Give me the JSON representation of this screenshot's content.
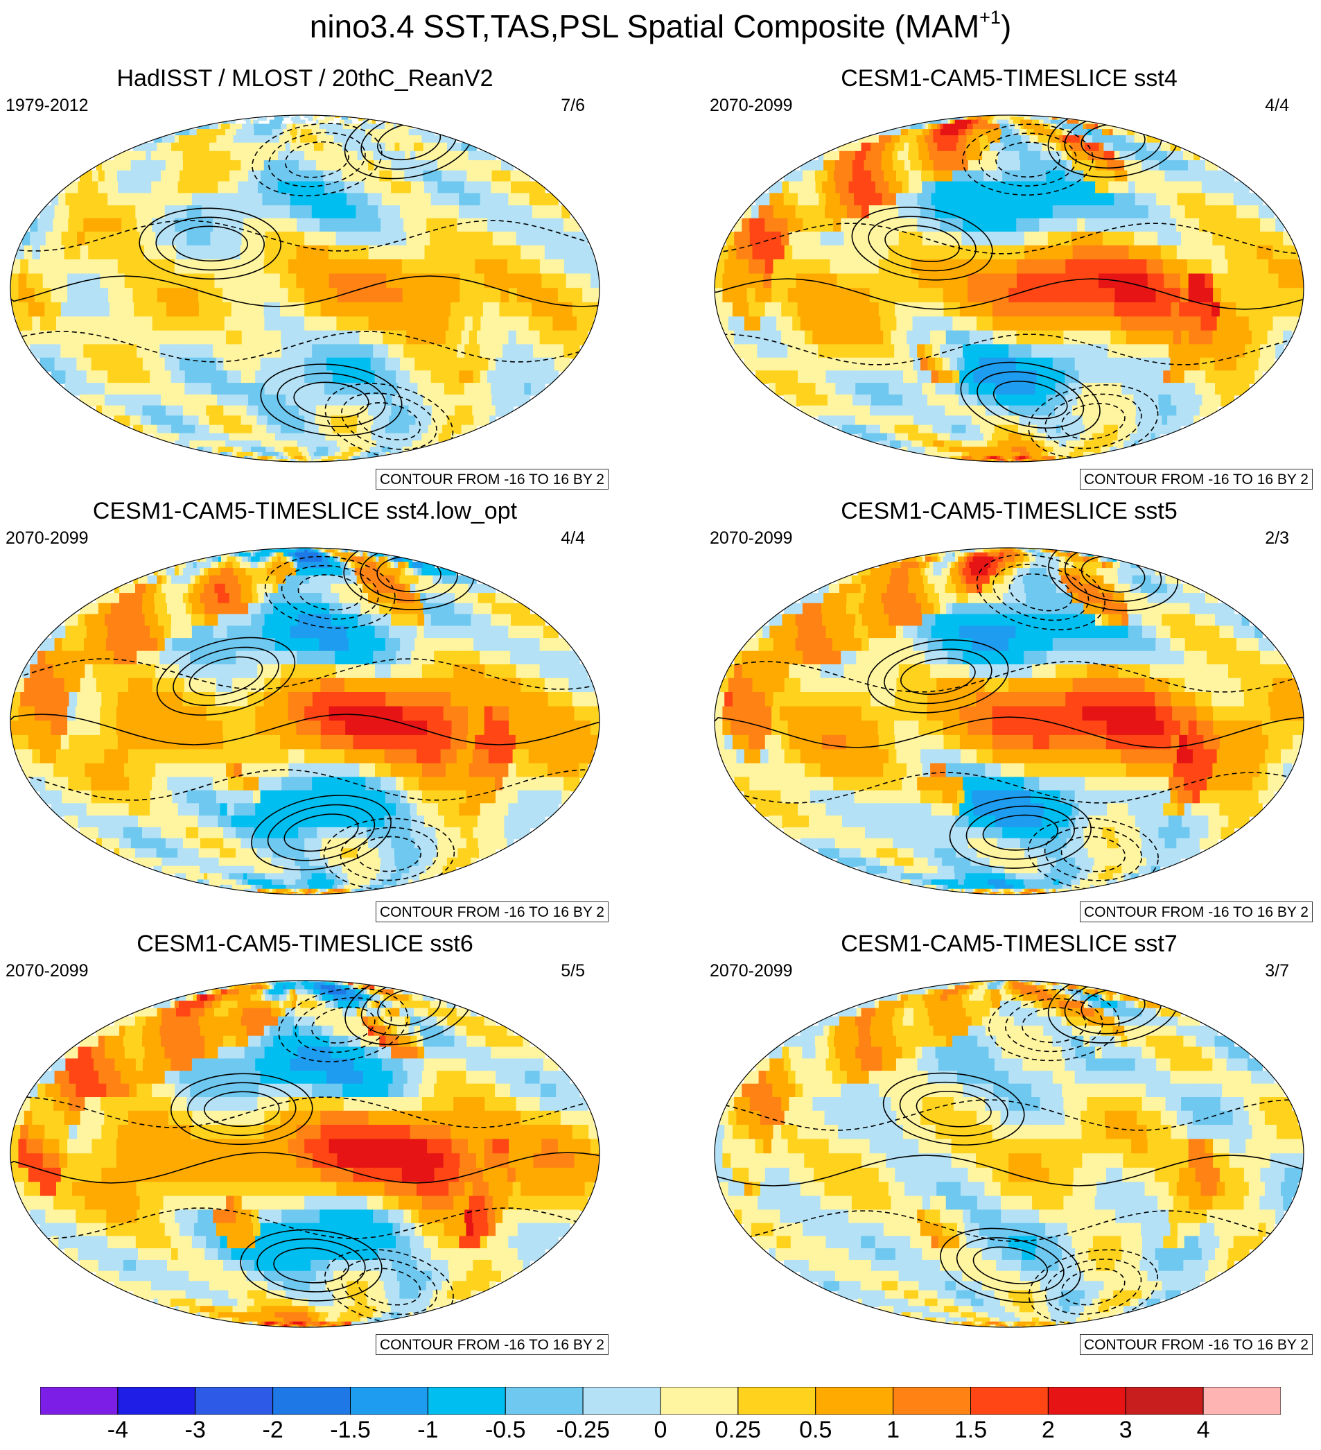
{
  "title": {
    "main": "nino3.4 SST,TAS,PSL Spatial Composite (MAM",
    "superscript": "+1",
    "suffix": ")"
  },
  "chart_data": [
    {
      "type": "heatmap",
      "title": "HadISST / MLOST / 20thC_ReanV2",
      "period": "1979-2012",
      "count": "7/6",
      "contour_note": "CONTOUR FROM -16 TO 16 BY 2",
      "pattern": {
        "enso": 0.55,
        "nh_polar": -0.4,
        "sh_polar": 0.0,
        "land": 0.25,
        "missing_polar": true,
        "flavor": 1
      }
    },
    {
      "type": "heatmap",
      "title": "CESM1-CAM5-TIMESLICE sst4",
      "period": "2070-2099",
      "count": "4/4",
      "contour_note": "CONTOUR FROM -16 TO 16 BY 2",
      "pattern": {
        "enso": 1.2,
        "nh_polar": 0.9,
        "sh_polar": 1.0,
        "land": 1.1,
        "missing_polar": false,
        "flavor": 2
      }
    },
    {
      "type": "heatmap",
      "title": "CESM1-CAM5-TIMESLICE sst4.low_opt",
      "period": "2070-2099",
      "count": "4/4",
      "contour_note": "CONTOUR FROM -16 TO 16 BY 2",
      "pattern": {
        "enso": 1.2,
        "nh_polar": -1.8,
        "sh_polar": -0.6,
        "land": 1.0,
        "missing_polar": false,
        "flavor": 3
      }
    },
    {
      "type": "heatmap",
      "title": "CESM1-CAM5-TIMESLICE sst5",
      "period": "2070-2099",
      "count": "2/3",
      "contour_note": "CONTOUR FROM -16 TO 16 BY 2",
      "pattern": {
        "enso": 1.3,
        "nh_polar": 1.2,
        "sh_polar": -1.0,
        "land": 1.0,
        "missing_polar": false,
        "flavor": 4
      }
    },
    {
      "type": "heatmap",
      "title": "CESM1-CAM5-TIMESLICE sst6",
      "period": "2070-2099",
      "count": "5/5",
      "contour_note": "CONTOUR FROM -16 TO 16 BY 2",
      "pattern": {
        "enso": 1.3,
        "nh_polar": -1.5,
        "sh_polar": 1.2,
        "land": 1.2,
        "missing_polar": false,
        "flavor": 5
      }
    },
    {
      "type": "heatmap",
      "title": "CESM1-CAM5-TIMESLICE sst7",
      "period": "2070-2099",
      "count": "3/7",
      "contour_note": "CONTOUR FROM -16 TO 16 BY 2",
      "pattern": {
        "enso": 0.25,
        "nh_polar": 0.9,
        "sh_polar": 0.1,
        "land": 0.7,
        "missing_polar": false,
        "flavor": 6
      }
    }
  ],
  "colorbar": {
    "labels": [
      "-4",
      "-3",
      "-2",
      "-1.5",
      "-1",
      "-0.5",
      "-0.25",
      "0",
      "0.25",
      "0.5",
      "1",
      "1.5",
      "2",
      "3",
      "4"
    ],
    "colors": [
      "#7d1ee6",
      "#1e1ee6",
      "#2d5ae6",
      "#1e78e6",
      "#1e9cf0",
      "#00bef0",
      "#6ec8f0",
      "#b4e1f5",
      "#fff5a0",
      "#ffd21e",
      "#ffaa00",
      "#ff8214",
      "#ff4614",
      "#e61414",
      "#c81e1e",
      "#ffb4b4"
    ]
  }
}
